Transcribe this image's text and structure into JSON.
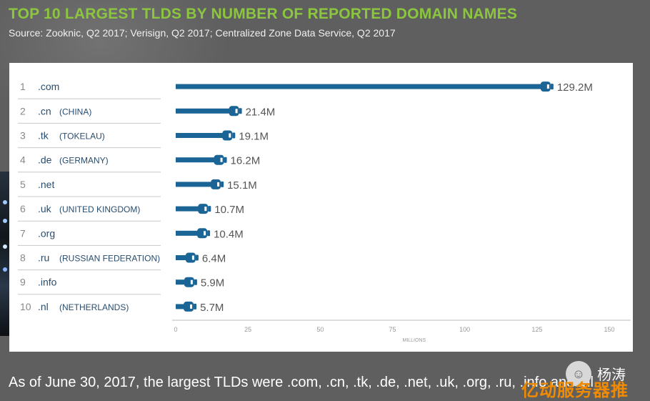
{
  "header": {
    "title": "TOP 10 LARGEST TLDS BY NUMBER OF REPORTED DOMAIN NAMES",
    "source": "Source: Zooknic, Q2 2017; Verisign, Q2 2017; Centralized Zone Data Service, Q2 2017"
  },
  "caption": "As of June 30, 2017, the largest TLDs were .com, .cn, .tk, .de, .net, .uk, .org, .ru, .info and .nl.",
  "watermark": {
    "name": "杨涛",
    "banner": "亿动服务器推"
  },
  "colors": {
    "title": "#8cc63f",
    "bar": "#1a6496",
    "background": "#5f5f5f"
  },
  "chart_data": {
    "type": "bar",
    "orientation": "horizontal",
    "categories": [
      ".com",
      ".cn",
      ".tk",
      ".de",
      ".net",
      ".uk",
      ".org",
      ".ru",
      ".info",
      ".nl"
    ],
    "ranks": [
      "1",
      "2",
      "3",
      "4",
      "5",
      "6",
      "7",
      "8",
      "9",
      "10"
    ],
    "countries": [
      "",
      "(CHINA)",
      "(TOKELAU)",
      "(GERMANY)",
      "",
      "(UNITED KINGDOM)",
      "",
      "(RUSSIAN FEDERATION)",
      "",
      "(NETHERLANDS)"
    ],
    "values": [
      129.2,
      21.4,
      19.1,
      16.2,
      15.1,
      10.7,
      10.4,
      6.4,
      5.9,
      5.7
    ],
    "value_labels": [
      "129.2M",
      "21.4M",
      "19.1M",
      "16.2M",
      "15.1M",
      "10.7M",
      "10.4M",
      "6.4M",
      "5.9M",
      "5.7M"
    ],
    "x_ticks": [
      0,
      25,
      50,
      75,
      100,
      125,
      150
    ],
    "xlabel": "MILLIONS",
    "xlim": [
      0,
      150
    ],
    "legend": "none",
    "grid": false
  }
}
